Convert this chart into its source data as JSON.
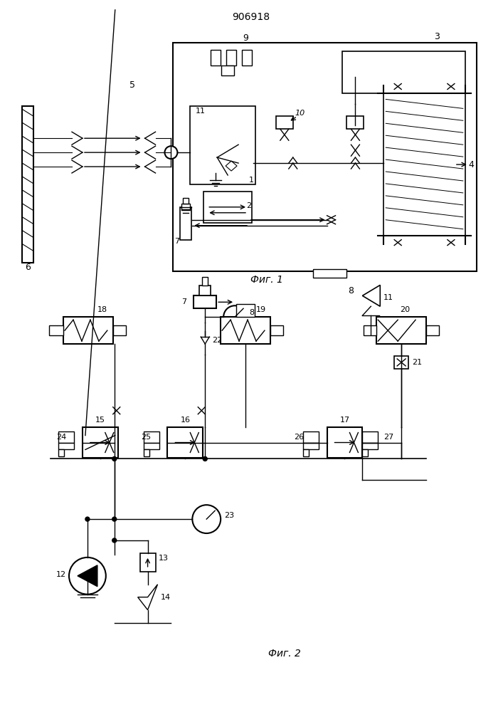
{
  "title": "906918",
  "fig1_label": "Фиг. 1",
  "fig2_label": "Фиг. 2",
  "bg_color": "#ffffff",
  "line_color": "#000000"
}
